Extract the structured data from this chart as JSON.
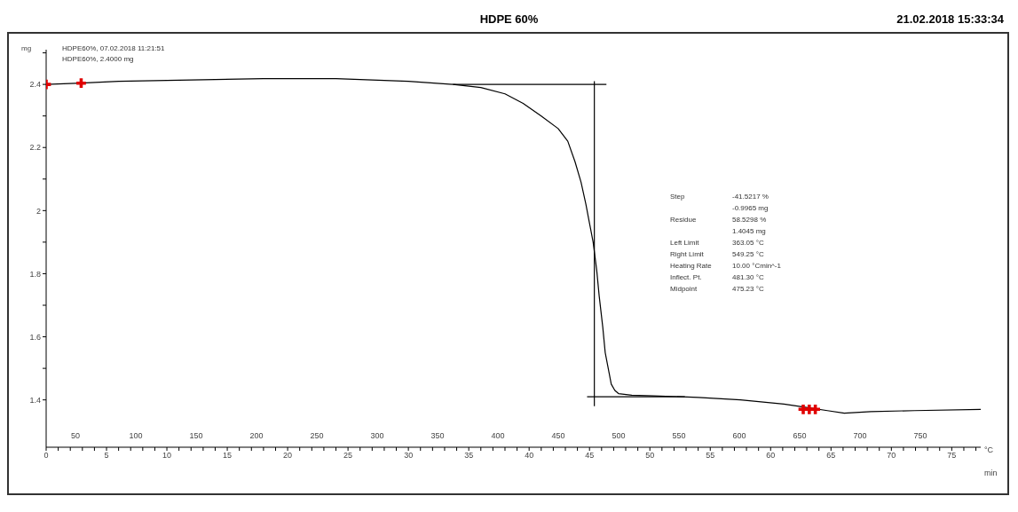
{
  "chart_data": {
    "type": "line",
    "title": "HDPE 60%",
    "subtitle": "21.02.2018 15:33:34",
    "ylabel": "mg",
    "xlabel": "min",
    "x2label": "°C",
    "xlim": [
      0,
      77.4
    ],
    "x2lim": [
      25.7,
      800
    ],
    "ylim": [
      1.25,
      2.51
    ],
    "yticks": [
      1.4,
      {
        "value": 1.5,
        "label": null
      },
      1.6,
      {
        "value": 1.7,
        "label": null
      },
      1.8,
      {
        "value": 1.9,
        "label": null
      },
      2.0,
      {
        "value": 2.1,
        "label": null
      },
      2.2,
      {
        "value": 2.3,
        "label": null
      },
      2.4,
      {
        "value": 2.5,
        "label": null
      }
    ],
    "xticks": [
      0,
      {
        "value": 1,
        "label": null
      },
      {
        "value": 2,
        "label": null
      },
      {
        "value": 3,
        "label": null
      },
      {
        "value": 4,
        "label": null
      },
      5,
      {
        "value": 6,
        "label": null
      },
      {
        "value": 7,
        "label": null
      },
      {
        "value": 8,
        "label": null
      },
      {
        "value": 9,
        "label": null
      },
      10,
      {
        "value": 11,
        "label": null
      },
      {
        "value": 12,
        "label": null
      },
      {
        "value": 13,
        "label": null
      },
      {
        "value": 14,
        "label": null
      },
      15,
      {
        "value": 16,
        "label": null
      },
      {
        "value": 17,
        "label": null
      },
      {
        "value": 18,
        "label": null
      },
      {
        "value": 19,
        "label": null
      },
      20,
      {
        "value": 21,
        "label": null
      },
      {
        "value": 22,
        "label": null
      },
      {
        "value": 23,
        "label": null
      },
      {
        "value": 24,
        "label": null
      },
      25,
      {
        "value": 26,
        "label": null
      },
      {
        "value": 27,
        "label": null
      },
      {
        "value": 28,
        "label": null
      },
      {
        "value": 29,
        "label": null
      },
      30,
      {
        "value": 31,
        "label": null
      },
      {
        "value": 32,
        "label": null
      },
      {
        "value": 33,
        "label": null
      },
      {
        "value": 34,
        "label": null
      },
      35,
      {
        "value": 36,
        "label": null
      },
      {
        "value": 37,
        "label": null
      },
      {
        "value": 38,
        "label": null
      },
      {
        "value": 39,
        "label": null
      },
      40,
      {
        "value": 41,
        "label": null
      },
      {
        "value": 42,
        "label": null
      },
      {
        "value": 43,
        "label": null
      },
      {
        "value": 44,
        "label": null
      },
      45,
      {
        "value": 46,
        "label": null
      },
      {
        "value": 47,
        "label": null
      },
      {
        "value": 48,
        "label": null
      },
      {
        "value": 49,
        "label": null
      },
      50,
      {
        "value": 51,
        "label": null
      },
      {
        "value": 52,
        "label": null
      },
      {
        "value": 53,
        "label": null
      },
      {
        "value": 54,
        "label": null
      },
      55,
      {
        "value": 56,
        "label": null
      },
      {
        "value": 57,
        "label": null
      },
      {
        "value": 58,
        "label": null
      },
      {
        "value": 59,
        "label": null
      },
      60,
      {
        "value": 61,
        "label": null
      },
      {
        "value": 62,
        "label": null
      },
      {
        "value": 63,
        "label": null
      },
      {
        "value": 64,
        "label": null
      },
      65,
      {
        "value": 66,
        "label": null
      },
      {
        "value": 67,
        "label": null
      },
      {
        "value": 68,
        "label": null
      },
      {
        "value": 69,
        "label": null
      },
      70,
      {
        "value": 71,
        "label": null
      },
      {
        "value": 72,
        "label": null
      },
      {
        "value": 73,
        "label": null
      },
      {
        "value": 74,
        "label": null
      },
      75,
      {
        "value": 76,
        "label": null
      },
      {
        "value": 77,
        "label": null
      }
    ],
    "x2ticks": [
      50,
      100,
      150,
      200,
      250,
      300,
      350,
      400,
      450,
      500,
      550,
      600,
      650,
      700,
      750
    ],
    "series": [
      {
        "color": "#000000",
        "marker": "none",
        "x": [
          0,
          2.9,
          6,
          12,
          18,
          24,
          30,
          33.7,
          36,
          38,
          39.5,
          41,
          42.4,
          43.2,
          43.8,
          44.3,
          44.7,
          45.0,
          45.3,
          45.6,
          45.8,
          46.1,
          46.3,
          46.6,
          46.8,
          47.1,
          47.4,
          48.5,
          50.3,
          54,
          57.5,
          61.1,
          63.2,
          64.7,
          66.1,
          68.3,
          71.9,
          77.4
        ],
        "values": [
          2.4,
          2.404,
          2.41,
          2.414,
          2.418,
          2.418,
          2.41,
          2.4,
          2.39,
          2.37,
          2.34,
          2.3,
          2.26,
          2.22,
          2.155,
          2.09,
          2.02,
          1.96,
          1.9,
          1.81,
          1.73,
          1.63,
          1.55,
          1.49,
          1.45,
          1.43,
          1.42,
          1.415,
          1.413,
          1.408,
          1.4,
          1.387,
          1.375,
          1.366,
          1.358,
          1.363,
          1.366,
          1.37
        ]
      },
      {
        "type": "line",
        "color": "#000000",
        "marker": "none",
        "x": [
          33.7,
          46.4
        ],
        "values": [
          2.4,
          2.4
        ]
      },
      {
        "type": "line",
        "color": "#000000",
        "marker": "none",
        "x": [
          45.4,
          45.4
        ],
        "values": [
          2.41,
          1.38
        ]
      },
      {
        "type": "line",
        "color": "#000000",
        "marker": "none",
        "x": [
          44.8,
          52.9
        ],
        "values": [
          1.41,
          1.41
        ]
      },
      {
        "type": "scatter",
        "color": "#e00000",
        "marker": "cross",
        "x": [
          0,
          2.9,
          62.7,
          63.2,
          63.7
        ],
        "values": [
          2.4,
          2.404,
          1.37,
          1.37,
          1.37
        ]
      }
    ],
    "annotations": [
      "HDPE60%, 07.02.2018 11:21:51",
      "HDPE60%, 2.4000 mg",
      "Step",
      "-41.5217 %",
      "-0.9965 mg",
      "Residue",
      "58.5298 %",
      "1.4045 mg",
      "Left Limit",
      "363.05 °C",
      "Right Limit",
      "549.25 °C",
      "Heating Rate",
      "10.00 °Cmin^-1",
      "Inflect. Pt.",
      "481.30 °C",
      "Midpoint",
      "475.23 °C"
    ]
  }
}
